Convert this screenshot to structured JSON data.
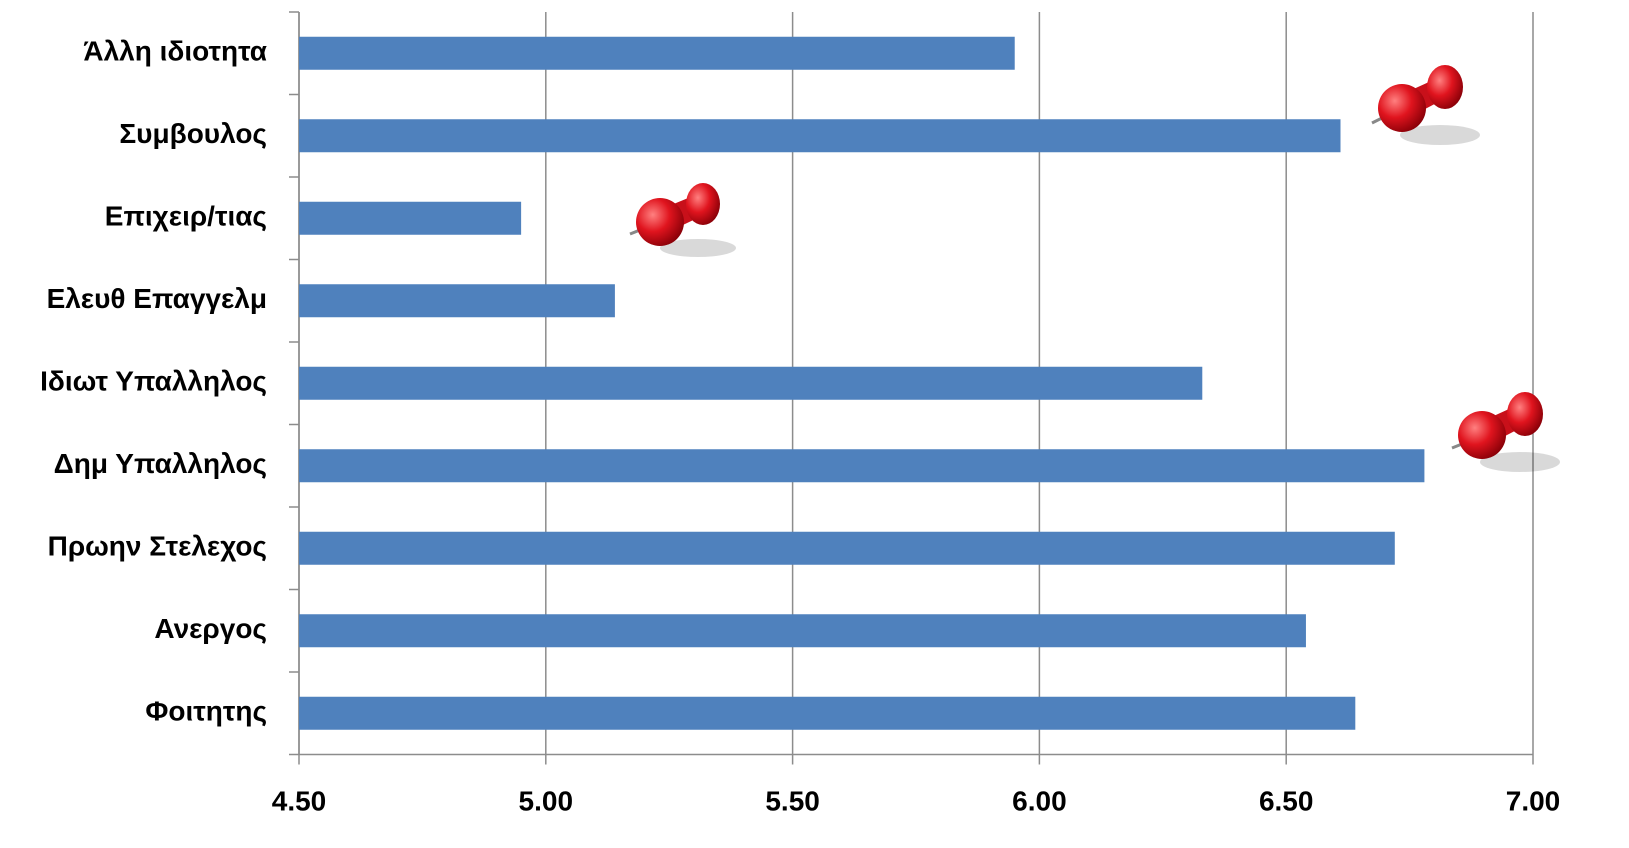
{
  "chart_data": {
    "type": "bar",
    "orientation": "horizontal",
    "categories": [
      "Άλλη ιδιοτητα",
      "Συμβουλος",
      "Επιχειρ/τιας",
      "Ελευθ Επαγγελμ",
      "Ιδιωτ Υπαλληλος",
      "Δημ Υπαλληλος",
      "Πρωην Στελεχος",
      "Ανεργος",
      "Φοιτητης"
    ],
    "values": [
      5.95,
      6.61,
      4.95,
      5.14,
      6.33,
      6.78,
      6.72,
      6.54,
      6.64
    ],
    "color": "#4f81bd",
    "xlim": [
      4.5,
      7.0
    ],
    "xticks": [
      {
        "value": 4.5,
        "label": "4.50"
      },
      {
        "value": 5.0,
        "label": "5.00"
      },
      {
        "value": 5.5,
        "label": "5.50"
      },
      {
        "value": 6.0,
        "label": "6.00"
      },
      {
        "value": 6.5,
        "label": "6.50"
      },
      {
        "value": 7.0,
        "label": "7.00"
      }
    ],
    "grid": true
  }
}
